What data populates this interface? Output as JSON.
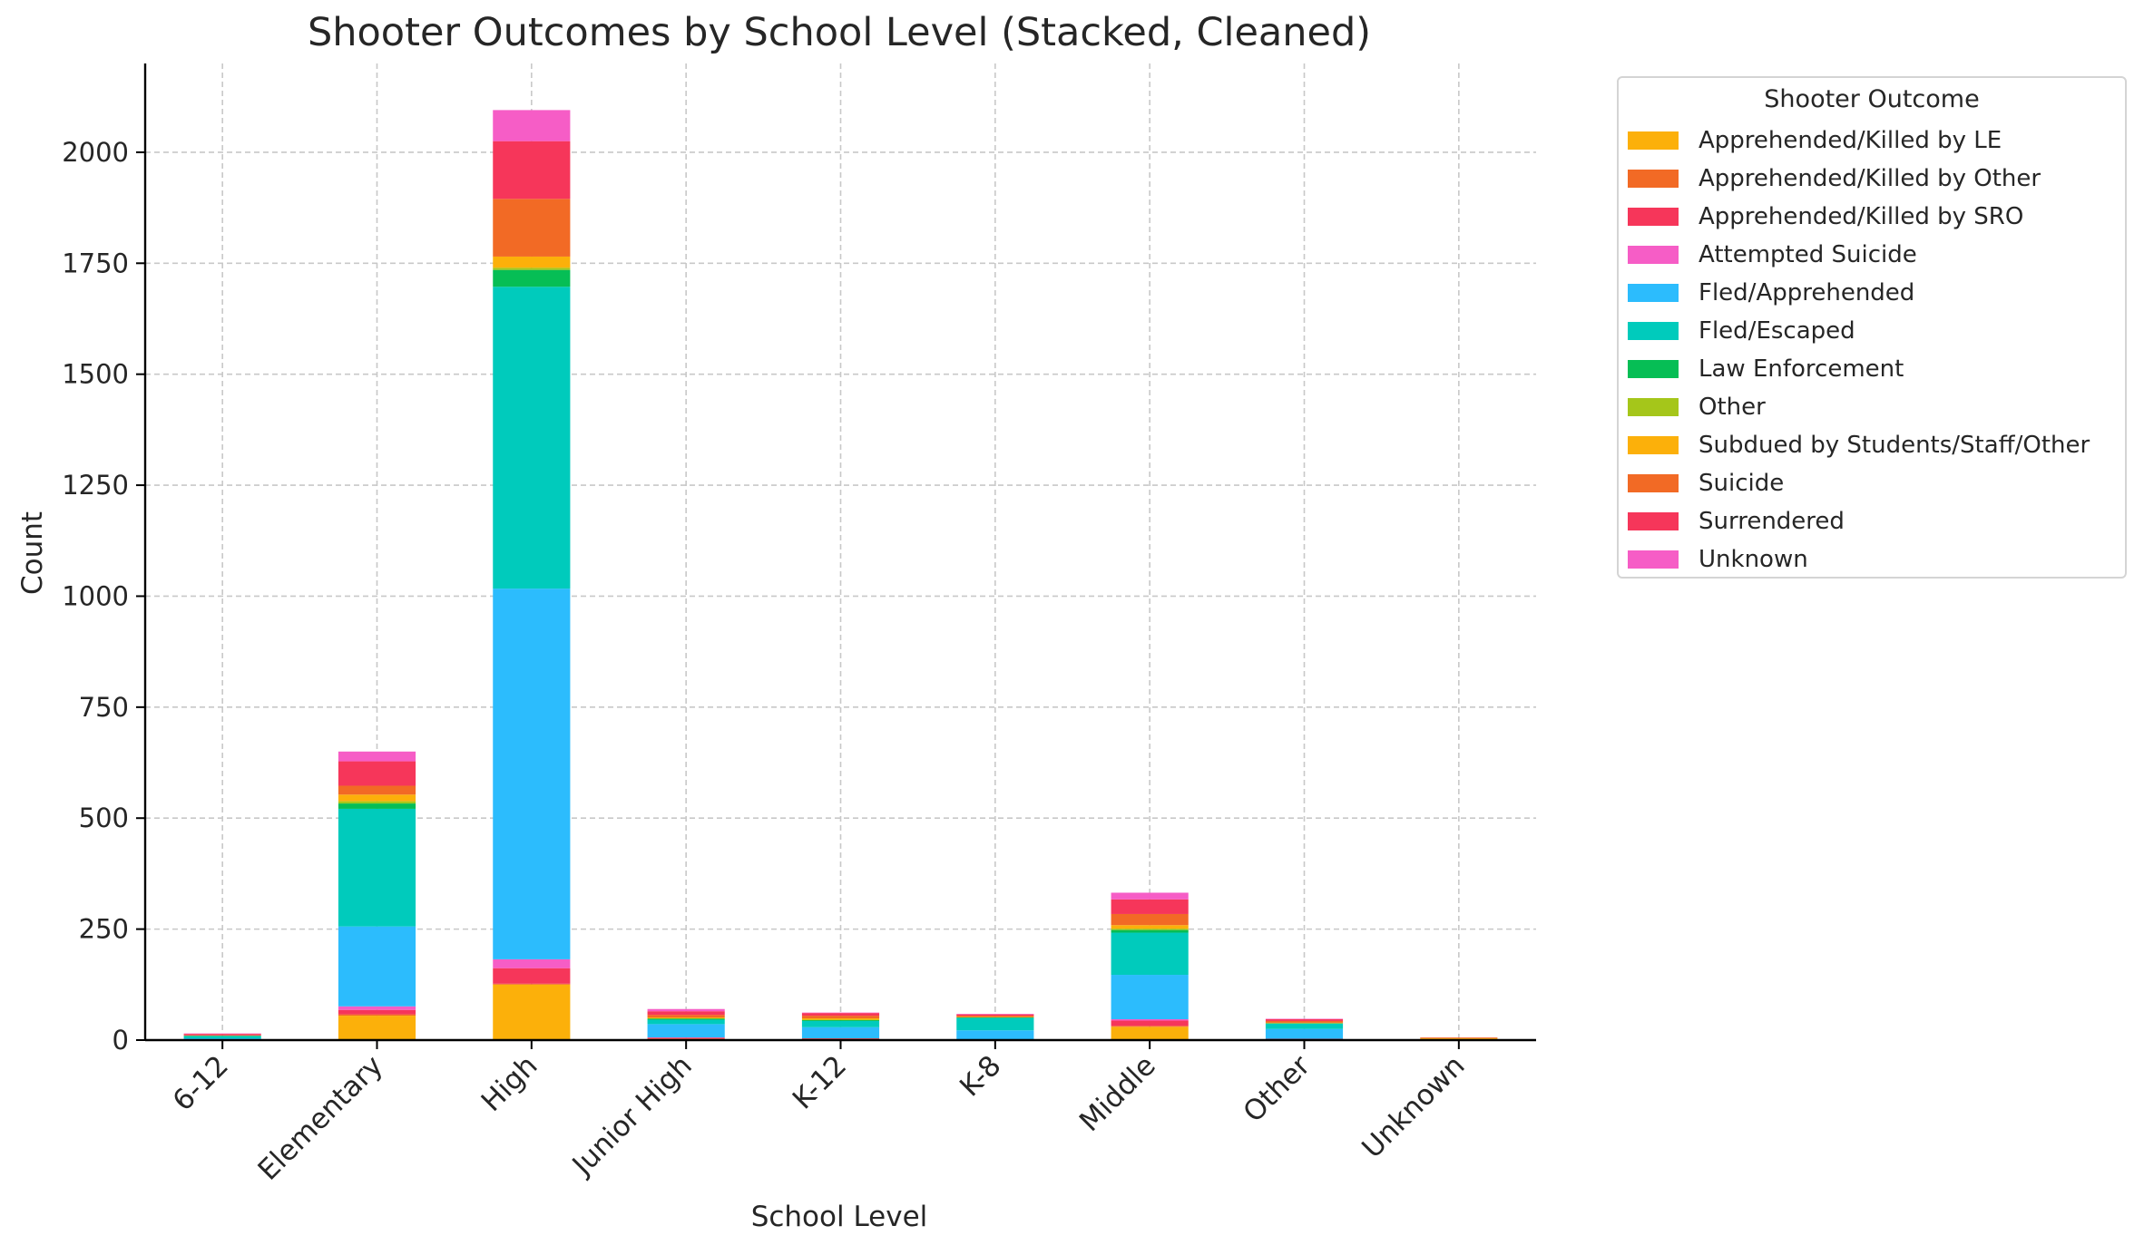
{
  "chart_data": {
    "type": "bar",
    "stacked": true,
    "title": "Shooter Outcomes by School Level (Stacked, Cleaned)",
    "xlabel": "School Level",
    "ylabel": "Count",
    "ylim": [
      0,
      2200
    ],
    "yticks": [
      0,
      250,
      500,
      750,
      1000,
      1250,
      1500,
      1750,
      2000
    ],
    "grid": true,
    "legend_title": "Shooter Outcome",
    "legend_position": "outside right",
    "categories": [
      "6-12",
      "Elementary",
      "High",
      "Junior High",
      "K-12",
      "K-8",
      "Middle",
      "Other",
      "Unknown"
    ],
    "series": [
      {
        "name": "Apprehended/Killed by LE",
        "color": "#FCB00A",
        "values": [
          0,
          55,
          125,
          3,
          2,
          2,
          30,
          2,
          4
        ]
      },
      {
        "name": "Apprehended/Killed by Other",
        "color": "#F26A25",
        "values": [
          0,
          3,
          2,
          0,
          1,
          0,
          2,
          0,
          0
        ]
      },
      {
        "name": "Apprehended/Killed by SRO",
        "color": "#F6365A",
        "values": [
          0,
          10,
          35,
          2,
          1,
          0,
          12,
          1,
          0
        ]
      },
      {
        "name": "Attempted Suicide",
        "color": "#F65DC6",
        "values": [
          0,
          8,
          20,
          1,
          0,
          0,
          3,
          0,
          0
        ]
      },
      {
        "name": "Fled/Apprehended",
        "color": "#2CBCFD",
        "values": [
          4,
          180,
          835,
          30,
          25,
          20,
          100,
          22,
          0
        ]
      },
      {
        "name": "Fled/Escaped",
        "color": "#00CBBC",
        "values": [
          5,
          265,
          680,
          10,
          14,
          28,
          95,
          12,
          0
        ]
      },
      {
        "name": "Law Enforcement",
        "color": "#06BE55",
        "values": [
          1,
          12,
          38,
          2,
          2,
          1,
          6,
          1,
          0
        ]
      },
      {
        "name": "Other",
        "color": "#A5C61A",
        "values": [
          0,
          5,
          5,
          1,
          1,
          0,
          3,
          0,
          0
        ]
      },
      {
        "name": "Subdued by Students/Staff/Other",
        "color": "#FCB00A",
        "values": [
          0,
          15,
          25,
          2,
          3,
          1,
          8,
          1,
          1
        ]
      },
      {
        "name": "Suicide",
        "color": "#F26A25",
        "values": [
          1,
          20,
          130,
          6,
          6,
          3,
          25,
          4,
          0
        ]
      },
      {
        "name": "Surrendered",
        "color": "#F6365A",
        "values": [
          3,
          55,
          130,
          8,
          6,
          3,
          33,
          4,
          1
        ]
      },
      {
        "name": "Unknown",
        "color": "#F65DC6",
        "values": [
          1,
          22,
          70,
          5,
          1,
          1,
          15,
          1,
          0
        ]
      }
    ]
  }
}
